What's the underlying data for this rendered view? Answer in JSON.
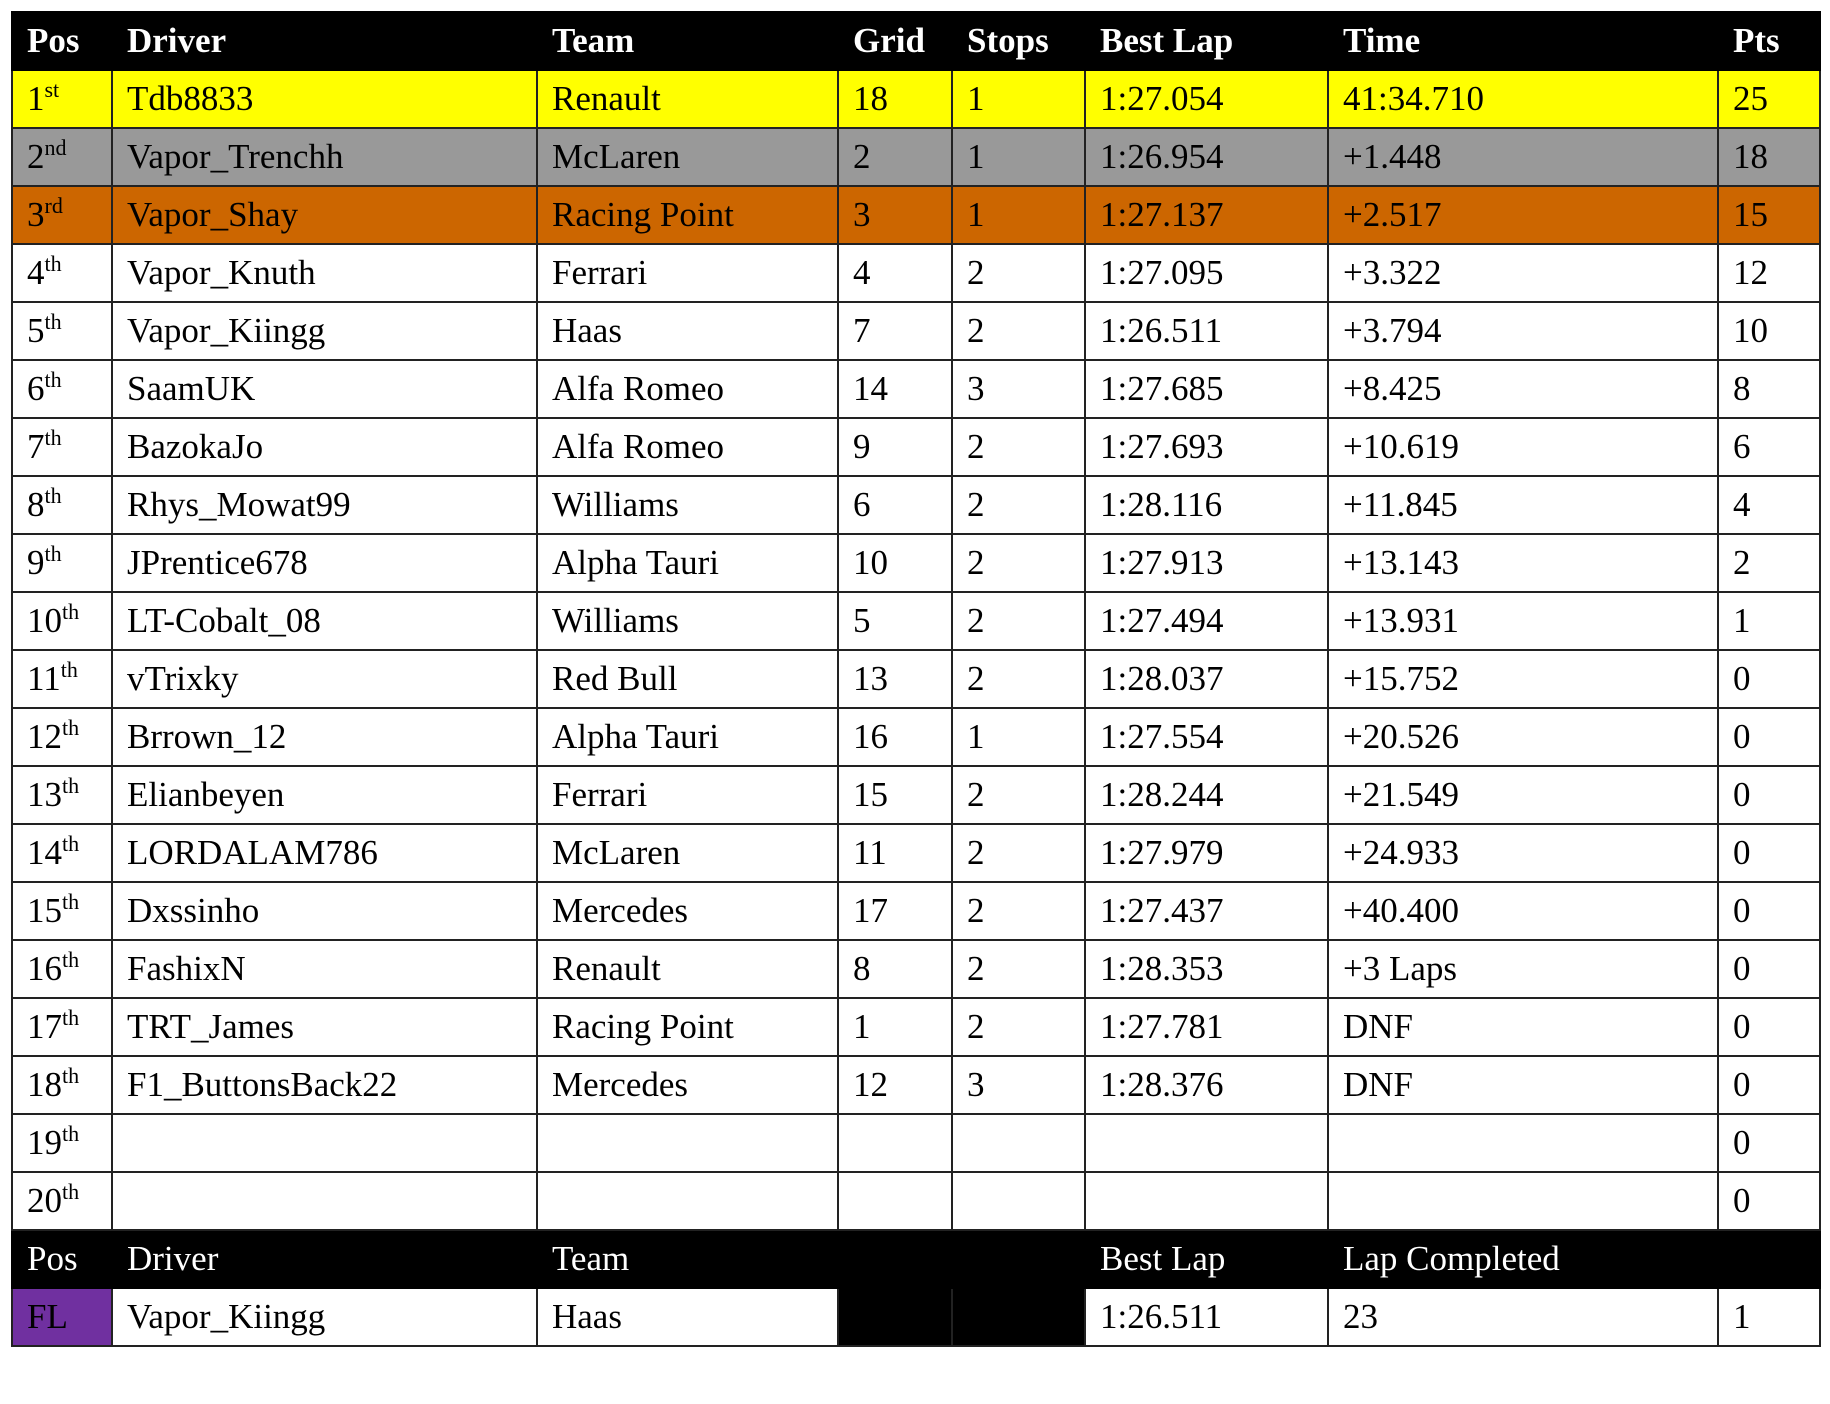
{
  "colors": {
    "first": "#ffff00",
    "second": "#999999",
    "third": "#cc6600",
    "fastest_lap": "#7030a0",
    "header": "#000000"
  },
  "headers": [
    "Pos",
    "Driver",
    "Team",
    "Grid",
    "Stops",
    "Best Lap",
    "Time",
    "Pts"
  ],
  "rows": [
    {
      "pos": "1",
      "suffix": "st",
      "driver": "Tdb8833",
      "team": "Renault",
      "grid": "18",
      "stops": "1",
      "best": "1:27.054",
      "time": "41:34.710",
      "pts": "25"
    },
    {
      "pos": "2",
      "suffix": "nd",
      "driver": "Vapor_Trenchh",
      "team": "McLaren",
      "grid": "2",
      "stops": "1",
      "best": "1:26.954",
      "time": "+1.448",
      "pts": "18"
    },
    {
      "pos": "3",
      "suffix": "rd",
      "driver": "Vapor_Shay",
      "team": "Racing Point",
      "grid": "3",
      "stops": "1",
      "best": "1:27.137",
      "time": "+2.517",
      "pts": "15"
    },
    {
      "pos": "4",
      "suffix": "th",
      "driver": "Vapor_Knuth",
      "team": "Ferrari",
      "grid": "4",
      "stops": "2",
      "best": "1:27.095",
      "time": "+3.322",
      "pts": "12"
    },
    {
      "pos": "5",
      "suffix": "th",
      "driver": "Vapor_Kiingg",
      "team": "Haas",
      "grid": "7",
      "stops": "2",
      "best": "1:26.511",
      "time": "+3.794",
      "pts": "10"
    },
    {
      "pos": "6",
      "suffix": "th",
      "driver": "SaamUK",
      "team": "Alfa Romeo",
      "grid": "14",
      "stops": "3",
      "best": "1:27.685",
      "time": "+8.425",
      "pts": "8"
    },
    {
      "pos": "7",
      "suffix": "th",
      "driver": "BazokaJo",
      "team": "Alfa Romeo",
      "grid": "9",
      "stops": "2",
      "best": "1:27.693",
      "time": "+10.619",
      "pts": "6"
    },
    {
      "pos": "8",
      "suffix": "th",
      "driver": "Rhys_Mowat99",
      "team": "Williams",
      "grid": "6",
      "stops": "2",
      "best": "1:28.116",
      "time": "+11.845",
      "pts": "4"
    },
    {
      "pos": "9",
      "suffix": "th",
      "driver": "JPrentice678",
      "team": "Alpha Tauri",
      "grid": "10",
      "stops": "2",
      "best": "1:27.913",
      "time": "+13.143",
      "pts": "2"
    },
    {
      "pos": "10",
      "suffix": "th",
      "driver": "LT-Cobalt_08",
      "team": "Williams",
      "grid": "5",
      "stops": "2",
      "best": "1:27.494",
      "time": "+13.931",
      "pts": "1"
    },
    {
      "pos": "11",
      "suffix": "th",
      "driver": "vTrixky",
      "team": "Red Bull",
      "grid": "13",
      "stops": "2",
      "best": "1:28.037",
      "time": "+15.752",
      "pts": "0"
    },
    {
      "pos": "12",
      "suffix": "th",
      "driver": "Brrown_12",
      "team": "Alpha Tauri",
      "grid": "16",
      "stops": "1",
      "best": "1:27.554",
      "time": "+20.526",
      "pts": "0"
    },
    {
      "pos": "13",
      "suffix": "th",
      "driver": "Elianbeyen",
      "team": "Ferrari",
      "grid": "15",
      "stops": "2",
      "best": "1:28.244",
      "time": "+21.549",
      "pts": "0"
    },
    {
      "pos": "14",
      "suffix": "th",
      "driver": "LORDALAM786",
      "team": "McLaren",
      "grid": "11",
      "stops": "2",
      "best": "1:27.979",
      "time": "+24.933",
      "pts": "0"
    },
    {
      "pos": "15",
      "suffix": "th",
      "driver": "Dxssinho",
      "team": "Mercedes",
      "grid": "17",
      "stops": "2",
      "best": "1:27.437",
      "time": "+40.400",
      "pts": "0"
    },
    {
      "pos": "16",
      "suffix": "th",
      "driver": "FashixN",
      "team": "Renault",
      "grid": "8",
      "stops": "2",
      "best": "1:28.353",
      "time": "+3 Laps",
      "pts": "0"
    },
    {
      "pos": "17",
      "suffix": "th",
      "driver": "TRT_James",
      "team": "Racing Point",
      "grid": "1",
      "stops": "2",
      "best": "1:27.781",
      "time": "DNF",
      "pts": "0"
    },
    {
      "pos": "18",
      "suffix": "th",
      "driver": "F1_ButtonsBack22",
      "team": "Mercedes",
      "grid": "12",
      "stops": "3",
      "best": "1:28.376",
      "time": "DNF",
      "pts": "0"
    },
    {
      "pos": "19",
      "suffix": "th",
      "driver": "",
      "team": "",
      "grid": "",
      "stops": "",
      "best": "",
      "time": "",
      "pts": "0"
    },
    {
      "pos": "20",
      "suffix": "th",
      "driver": "",
      "team": "",
      "grid": "",
      "stops": "",
      "best": "",
      "time": "",
      "pts": "0"
    }
  ],
  "fastest_lap": {
    "headers": {
      "pos": "Pos",
      "driver": "Driver",
      "team": "Team",
      "best": "Best Lap",
      "lap": "Lap Completed"
    },
    "pos": "FL",
    "driver": "Vapor_Kiingg",
    "team": "Haas",
    "best": "1:26.511",
    "lap": "23",
    "pts": "1"
  }
}
